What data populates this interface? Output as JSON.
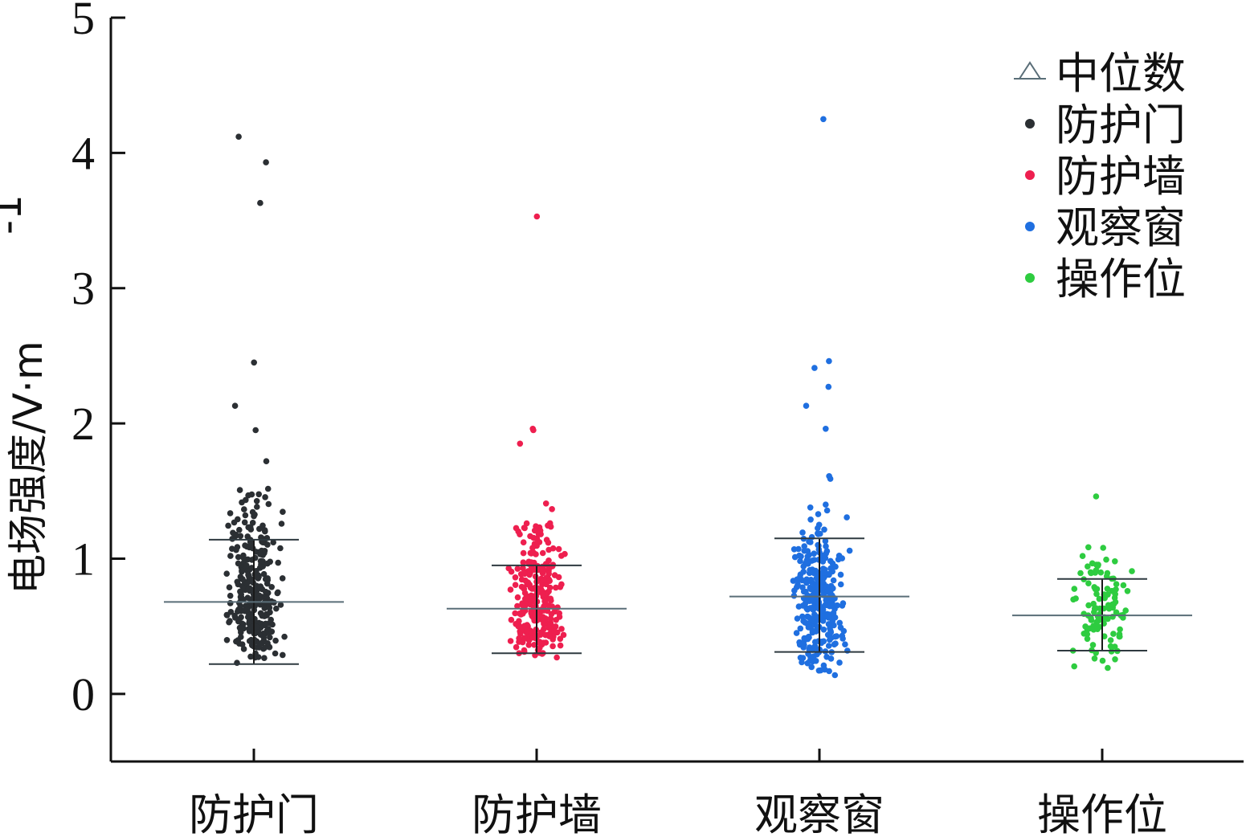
{
  "chart_data": {
    "type": "scatter",
    "subtype": "jitter-with-median-and-spread",
    "ylabel": "电场强度/V·m",
    "ylabel_exponent": "-1",
    "ylim": [
      -0.5,
      5
    ],
    "yticks": [
      "0",
      "1",
      "2",
      "3",
      "4",
      "5"
    ],
    "categories": [
      "防护门",
      "防护墙",
      "观察窗",
      "操作位"
    ],
    "legend": {
      "position": "top-right",
      "entries": [
        {
          "label": "中位数",
          "marker": "triangle",
          "color": "#5a6e78"
        },
        {
          "label": "防护门",
          "marker": "dot",
          "color": "#2b2f33"
        },
        {
          "label": "防护墙",
          "marker": "dot",
          "color": "#ee1f4f"
        },
        {
          "label": "观察窗",
          "marker": "dot",
          "color": "#1f6fe0"
        },
        {
          "label": "操作位",
          "marker": "dot",
          "color": "#2ecc40"
        }
      ]
    },
    "series": [
      {
        "name": "防护门",
        "color": "#2b2f33",
        "median": 0.68,
        "upper": 1.14,
        "lower": 0.22,
        "outliers": [
          4.12,
          3.93,
          3.63,
          2.45,
          2.13,
          1.95,
          1.72
        ],
        "count": 300,
        "dist": {
          "min": 0.2,
          "mode": 0.5,
          "max": 1.55
        }
      },
      {
        "name": "防护墙",
        "color": "#ee1f4f",
        "median": 0.63,
        "upper": 0.95,
        "lower": 0.3,
        "outliers": [
          3.53,
          1.96,
          1.95,
          1.85
        ],
        "count": 280,
        "dist": {
          "min": 0.22,
          "mode": 0.5,
          "max": 1.5
        }
      },
      {
        "name": "观察窗",
        "color": "#1f6fe0",
        "median": 0.72,
        "upper": 1.15,
        "lower": 0.31,
        "outliers": [
          4.25,
          2.46,
          2.41,
          2.27,
          2.13,
          1.96,
          1.61,
          1.59
        ],
        "count": 300,
        "dist": {
          "min": 0.12,
          "mode": 0.65,
          "max": 1.43
        }
      },
      {
        "name": "操作位",
        "color": "#2ecc40",
        "median": 0.58,
        "upper": 0.85,
        "lower": 0.32,
        "outliers": [
          1.46
        ],
        "count": 110,
        "dist": {
          "min": 0.16,
          "mode": 0.5,
          "max": 1.15
        }
      }
    ],
    "grid": false
  }
}
